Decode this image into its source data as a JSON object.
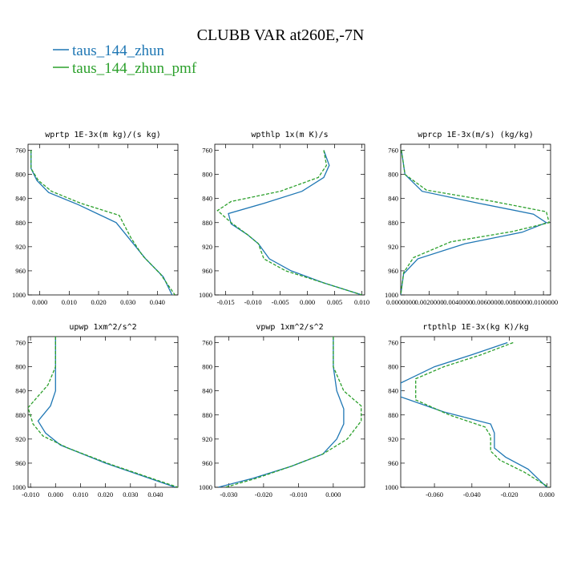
{
  "figure": {
    "title": "CLUBB VAR at260E,-7N",
    "legend": [
      {
        "name": "taus_144_zhun",
        "color": "#1f77b4",
        "dash": "solid"
      },
      {
        "name": "taus_144_zhun_pmf",
        "color": "#2ca02c",
        "dash": "dashed"
      }
    ]
  },
  "chart_data": [
    {
      "type": "line",
      "title": "wprtp  1E-3x(m kg)/(s kg)",
      "xlim": [
        -0.004,
        0.047
      ],
      "ylim": [
        1000,
        750
      ],
      "y_inverted": true,
      "xticks": [
        0.0,
        0.01,
        0.02,
        0.03,
        0.04
      ],
      "xtick_labels": [
        "0.000",
        "0.010",
        "0.020",
        "0.030",
        "0.040"
      ],
      "yticks": [
        760,
        800,
        840,
        880,
        920,
        960,
        1000
      ],
      "grid": false,
      "series": [
        {
          "name": "taus_144_zhun",
          "x": [
            -0.003,
            -0.003,
            -0.001,
            0.003,
            0.013,
            0.026,
            0.031,
            0.036,
            0.042,
            0.045
          ],
          "y": [
            760,
            790,
            810,
            830,
            850,
            880,
            910,
            940,
            970,
            1000
          ]
        },
        {
          "name": "taus_144_zhun_pmf",
          "x": [
            -0.003,
            -0.003,
            -0.0005,
            0.004,
            0.014,
            0.027,
            0.031,
            0.035,
            0.041,
            0.046
          ],
          "y": [
            760,
            790,
            810,
            828,
            848,
            868,
            905,
            935,
            965,
            1000
          ]
        }
      ]
    },
    {
      "type": "line",
      "title": "wpthlp  1x(m K)/s",
      "xlim": [
        -0.017,
        0.0105
      ],
      "ylim": [
        1000,
        750
      ],
      "y_inverted": true,
      "xticks": [
        -0.015,
        -0.01,
        -0.005,
        0.0,
        0.005,
        0.01
      ],
      "xtick_labels": [
        "-0.015",
        "-0.010",
        "-0.005",
        "0.000",
        "0.005",
        "0.010"
      ],
      "yticks": [
        760,
        800,
        840,
        880,
        920,
        960,
        1000
      ],
      "grid": false,
      "series": [
        {
          "name": "taus_144_zhun",
          "x": [
            0.003,
            0.004,
            0.003,
            -0.001,
            -0.008,
            -0.0145,
            -0.014,
            -0.011,
            -0.009,
            -0.007,
            -0.003,
            0.003,
            0.01
          ],
          "y": [
            760,
            785,
            805,
            828,
            848,
            865,
            882,
            900,
            915,
            940,
            960,
            980,
            1000
          ]
        },
        {
          "name": "taus_144_zhun_pmf",
          "x": [
            0.003,
            0.0035,
            0.002,
            -0.005,
            -0.014,
            -0.0165,
            -0.014,
            -0.011,
            -0.009,
            -0.008,
            -0.004,
            0.003,
            0.01
          ],
          "y": [
            760,
            785,
            805,
            828,
            845,
            860,
            880,
            900,
            915,
            940,
            960,
            980,
            1000
          ]
        }
      ]
    },
    {
      "type": "line",
      "title": "wprcp  1E-3x(m/s) (kg/kg)",
      "xlim": [
        0,
        0.0105
      ],
      "ylim": [
        1000,
        750
      ],
      "y_inverted": true,
      "xticks": [
        0.0,
        0.002,
        0.004,
        0.006,
        0.008,
        0.01
      ],
      "xtick_labels": [
        "0.0000000",
        "0.0020000",
        "0.0040000",
        "0.0060000",
        "0.0080000",
        "0.0100000"
      ],
      "yticks": [
        760,
        800,
        840,
        880,
        920,
        960,
        1000
      ],
      "grid": false,
      "series": [
        {
          "name": "taus_144_zhun",
          "x": [
            5e-05,
            0.0003,
            0.0015,
            0.0055,
            0.0093,
            0.0102,
            0.0085,
            0.0045,
            0.0012,
            0.0002,
            0.0
          ],
          "y": [
            760,
            800,
            828,
            848,
            866,
            880,
            896,
            915,
            940,
            965,
            1000
          ]
        },
        {
          "name": "taus_144_zhun_pmf",
          "x": [
            5e-05,
            0.0003,
            0.0018,
            0.0065,
            0.0102,
            0.0104,
            0.0078,
            0.0035,
            0.0009,
            0.0002,
            0.0
          ],
          "y": [
            760,
            800,
            826,
            845,
            862,
            880,
            895,
            912,
            938,
            963,
            1000
          ]
        }
      ]
    },
    {
      "type": "line",
      "title": "upwp  1xm^2/s^2",
      "xlim": [
        -0.011,
        0.049
      ],
      "ylim": [
        1000,
        750
      ],
      "y_inverted": true,
      "xticks": [
        -0.01,
        0.0,
        0.01,
        0.02,
        0.03,
        0.04
      ],
      "xtick_labels": [
        "-0.010",
        "0.000",
        "0.010",
        "0.020",
        "0.030",
        "0.040"
      ],
      "yticks": [
        760,
        800,
        840,
        880,
        920,
        960,
        1000
      ],
      "grid": false,
      "series": [
        {
          "name": "taus_144_zhun",
          "x": [
            0.0,
            0.0,
            0.0,
            -0.002,
            -0.007,
            -0.004,
            0.002,
            0.02,
            0.048
          ],
          "y": [
            750,
            800,
            840,
            865,
            890,
            910,
            930,
            960,
            1000
          ]
        },
        {
          "name": "taus_144_zhun_pmf",
          "x": [
            0.0,
            0.0,
            -0.003,
            -0.011,
            -0.009,
            -0.005,
            0.005,
            0.022,
            0.049
          ],
          "y": [
            750,
            800,
            830,
            868,
            895,
            915,
            935,
            962,
            1000
          ]
        }
      ]
    },
    {
      "type": "line",
      "title": "vpwp  1xm^2/s^2",
      "xlim": [
        -0.034,
        0.009
      ],
      "ylim": [
        1000,
        750
      ],
      "y_inverted": true,
      "xticks": [
        -0.03,
        -0.02,
        -0.01,
        0.0
      ],
      "xtick_labels": [
        "-0.030",
        "-0.020",
        "-0.010",
        "0.000"
      ],
      "yticks": [
        760,
        800,
        840,
        880,
        920,
        960,
        1000
      ],
      "grid": false,
      "series": [
        {
          "name": "taus_144_zhun",
          "x": [
            0.0,
            0.0,
            0.001,
            0.003,
            0.003,
            0.001,
            -0.003,
            -0.012,
            -0.023,
            -0.033
          ],
          "y": [
            750,
            800,
            840,
            870,
            895,
            920,
            945,
            965,
            985,
            1000
          ]
        },
        {
          "name": "taus_144_zhun_pmf",
          "x": [
            0.0,
            0.0,
            0.003,
            0.008,
            0.008,
            0.004,
            -0.003,
            -0.012,
            -0.022,
            -0.031
          ],
          "y": [
            750,
            800,
            840,
            865,
            890,
            920,
            945,
            965,
            985,
            1000
          ]
        }
      ]
    },
    {
      "type": "line",
      "title": "rtpthlp  1E-3x(kg K)/kg",
      "xlim": [
        -0.078,
        0.002
      ],
      "ylim": [
        1000,
        750
      ],
      "y_inverted": true,
      "xticks": [
        -0.06,
        -0.04,
        -0.02,
        0.0
      ],
      "xtick_labels": [
        "-0.060",
        "-0.040",
        "-0.020",
        "0.000"
      ],
      "yticks": [
        760,
        800,
        840,
        880,
        920,
        960,
        1000
      ],
      "grid": false,
      "series": [
        {
          "name": "taus_144_zhun",
          "x": [
            -0.021,
            -0.04,
            -0.06,
            -0.078,
            -0.078,
            -0.055,
            -0.03,
            -0.028,
            -0.028,
            -0.022,
            -0.01,
            0.0
          ],
          "y": [
            760,
            780,
            800,
            827,
            850,
            875,
            895,
            910,
            935,
            950,
            970,
            1000
          ]
        },
        {
          "name": "taus_144_zhun_pmf",
          "x": [
            -0.018,
            -0.035,
            -0.055,
            -0.07,
            -0.07,
            -0.052,
            -0.033,
            -0.03,
            -0.03,
            -0.025,
            -0.012,
            0.001
          ],
          "y": [
            760,
            780,
            800,
            820,
            855,
            880,
            900,
            915,
            940,
            955,
            975,
            1000
          ]
        }
      ]
    }
  ]
}
